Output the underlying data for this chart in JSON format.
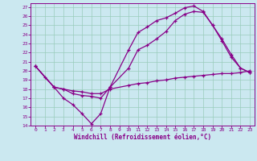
{
  "bg_color": "#cbe8f0",
  "line_color": "#880088",
  "grid_color": "#99ccbb",
  "xlabel": "Windchill (Refroidissement éolien,°C)",
  "xlim": [
    -0.5,
    23.5
  ],
  "ylim": [
    14,
    27.4
  ],
  "xticks": [
    0,
    1,
    2,
    3,
    4,
    5,
    6,
    7,
    8,
    9,
    10,
    11,
    12,
    13,
    14,
    15,
    16,
    17,
    18,
    19,
    20,
    21,
    22,
    23
  ],
  "yticks": [
    14,
    15,
    16,
    17,
    18,
    19,
    20,
    21,
    22,
    23,
    24,
    25,
    26,
    27
  ],
  "line1_x": [
    0,
    1,
    2,
    3,
    4,
    5,
    6,
    7,
    8,
    10,
    11,
    12,
    13,
    14,
    15,
    16,
    17,
    18,
    19,
    20,
    21,
    22,
    23
  ],
  "line1_y": [
    20.5,
    19.3,
    18.2,
    17.0,
    16.3,
    15.3,
    14.2,
    15.3,
    18.2,
    22.3,
    24.2,
    24.8,
    25.5,
    25.8,
    26.3,
    26.9,
    27.1,
    26.5,
    25.0,
    23.5,
    21.8,
    20.3,
    19.8
  ],
  "line2_x": [
    0,
    2,
    3,
    4,
    5,
    6,
    7,
    8,
    10,
    11,
    12,
    13,
    14,
    15,
    16,
    17,
    18,
    19,
    20,
    21,
    22,
    23
  ],
  "line2_y": [
    20.5,
    18.2,
    18.0,
    17.5,
    17.3,
    17.2,
    17.0,
    18.2,
    20.3,
    22.3,
    22.8,
    23.5,
    24.3,
    25.5,
    26.2,
    26.5,
    26.4,
    25.0,
    23.3,
    21.5,
    20.3,
    19.8
  ],
  "line3_x": [
    0,
    2,
    3,
    4,
    5,
    6,
    7,
    8,
    10,
    11,
    12,
    13,
    14,
    15,
    16,
    17,
    18,
    19,
    20,
    21,
    22,
    23
  ],
  "line3_y": [
    20.5,
    18.2,
    18.0,
    17.8,
    17.7,
    17.5,
    17.5,
    18.0,
    18.4,
    18.6,
    18.7,
    18.9,
    19.0,
    19.2,
    19.3,
    19.4,
    19.5,
    19.6,
    19.7,
    19.7,
    19.8,
    20.0
  ]
}
